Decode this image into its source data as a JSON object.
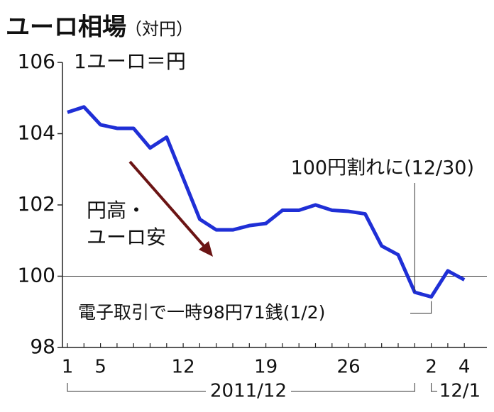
{
  "chart_data": {
    "type": "line",
    "title": "ユーロ相場",
    "subtitle": "（対円）",
    "unit_label": "1ユーロ＝円",
    "categories": [
      "1",
      null,
      "5",
      null,
      null,
      null,
      null,
      "12",
      null,
      null,
      null,
      null,
      "19",
      null,
      null,
      null,
      null,
      "26",
      null,
      null,
      null,
      null,
      "2",
      null,
      "4"
    ],
    "series": [
      {
        "color": "#1f2fd6",
        "values": [
          104.6,
          104.75,
          104.25,
          104.15,
          104.15,
          103.6,
          103.9,
          102.75,
          101.6,
          101.3,
          101.3,
          101.42,
          101.48,
          101.85,
          101.85,
          102.0,
          101.85,
          101.82,
          101.75,
          100.85,
          100.6,
          99.55,
          99.42,
          100.15,
          99.9
        ]
      }
    ],
    "ylim": [
      98,
      106
    ],
    "yticks": [
      98,
      100,
      102,
      104,
      106
    ],
    "reference_line": 100,
    "annotations": [
      "100円割れに(12/30)",
      "電子取引で一時98円71銭(1/2)"
    ],
    "trend_label": [
      "円高・",
      "ユーロ安"
    ],
    "period_labels": [
      "2011/12",
      "12/1"
    ]
  }
}
